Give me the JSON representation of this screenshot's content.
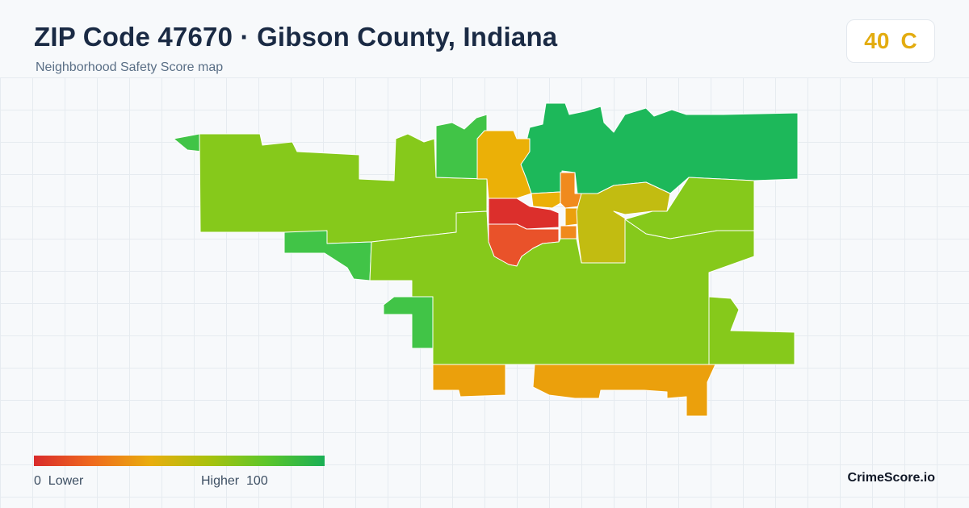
{
  "header": {
    "title": "ZIP Code 47670 · Gibson County, Indiana",
    "subtitle": "Neighborhood Safety Score map"
  },
  "score": {
    "value": "40",
    "grade": "C",
    "color": "#e3ac10"
  },
  "legend": {
    "min_label": "0",
    "low_label": "Lower",
    "high_label": "Higher",
    "max_label": "100",
    "gradient_colors": [
      "#d92b2b",
      "#ef6a1e",
      "#e9ad0e",
      "#a9c10d",
      "#5cc62a",
      "#1aaf55"
    ]
  },
  "map": {
    "region_colors": {
      "dark_green": "#1db85a",
      "green": "#41c447",
      "yellow_green": "#86c91b",
      "olive": "#c2bc11",
      "amber": "#ebb007",
      "orange_amber": "#eba00c",
      "orange": "#f08a1d",
      "red_orange": "#e9522a",
      "red": "#dc2f2c"
    }
  },
  "brand": {
    "name": "CrimeScore.io"
  }
}
